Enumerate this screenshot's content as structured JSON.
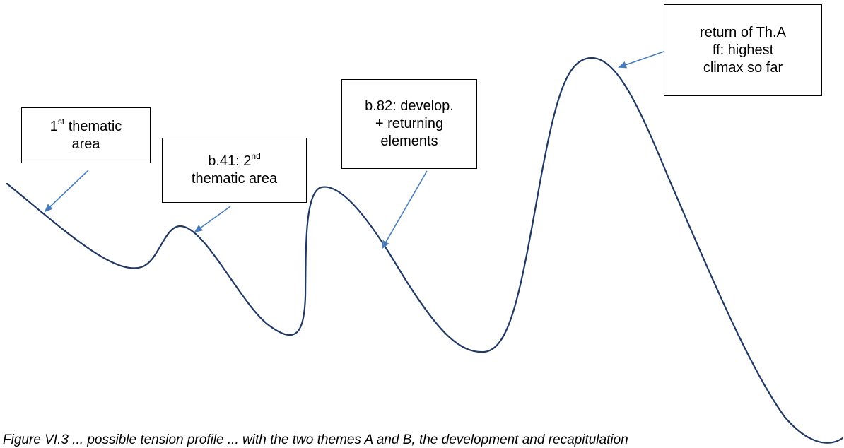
{
  "diagram": {
    "curve_color": "#1f3864",
    "arrow_color": "#4a7ebb",
    "labels": [
      {
        "id": "first-area",
        "parts": [
          "1",
          "st",
          " thematic",
          "area"
        ]
      },
      {
        "id": "second-area",
        "parts": [
          "b.41: 2",
          "nd",
          "thematic area"
        ]
      },
      {
        "id": "develop",
        "lines": [
          "b.82: develop.",
          "+ returning",
          "elements"
        ]
      },
      {
        "id": "return-tha",
        "lines": [
          "return of Th.A",
          "ff: highest",
          "climax so far"
        ]
      }
    ]
  },
  "caption": "Figure VI.3 ... possible tension profile ... with the two themes A and B, the development and recapitulation"
}
